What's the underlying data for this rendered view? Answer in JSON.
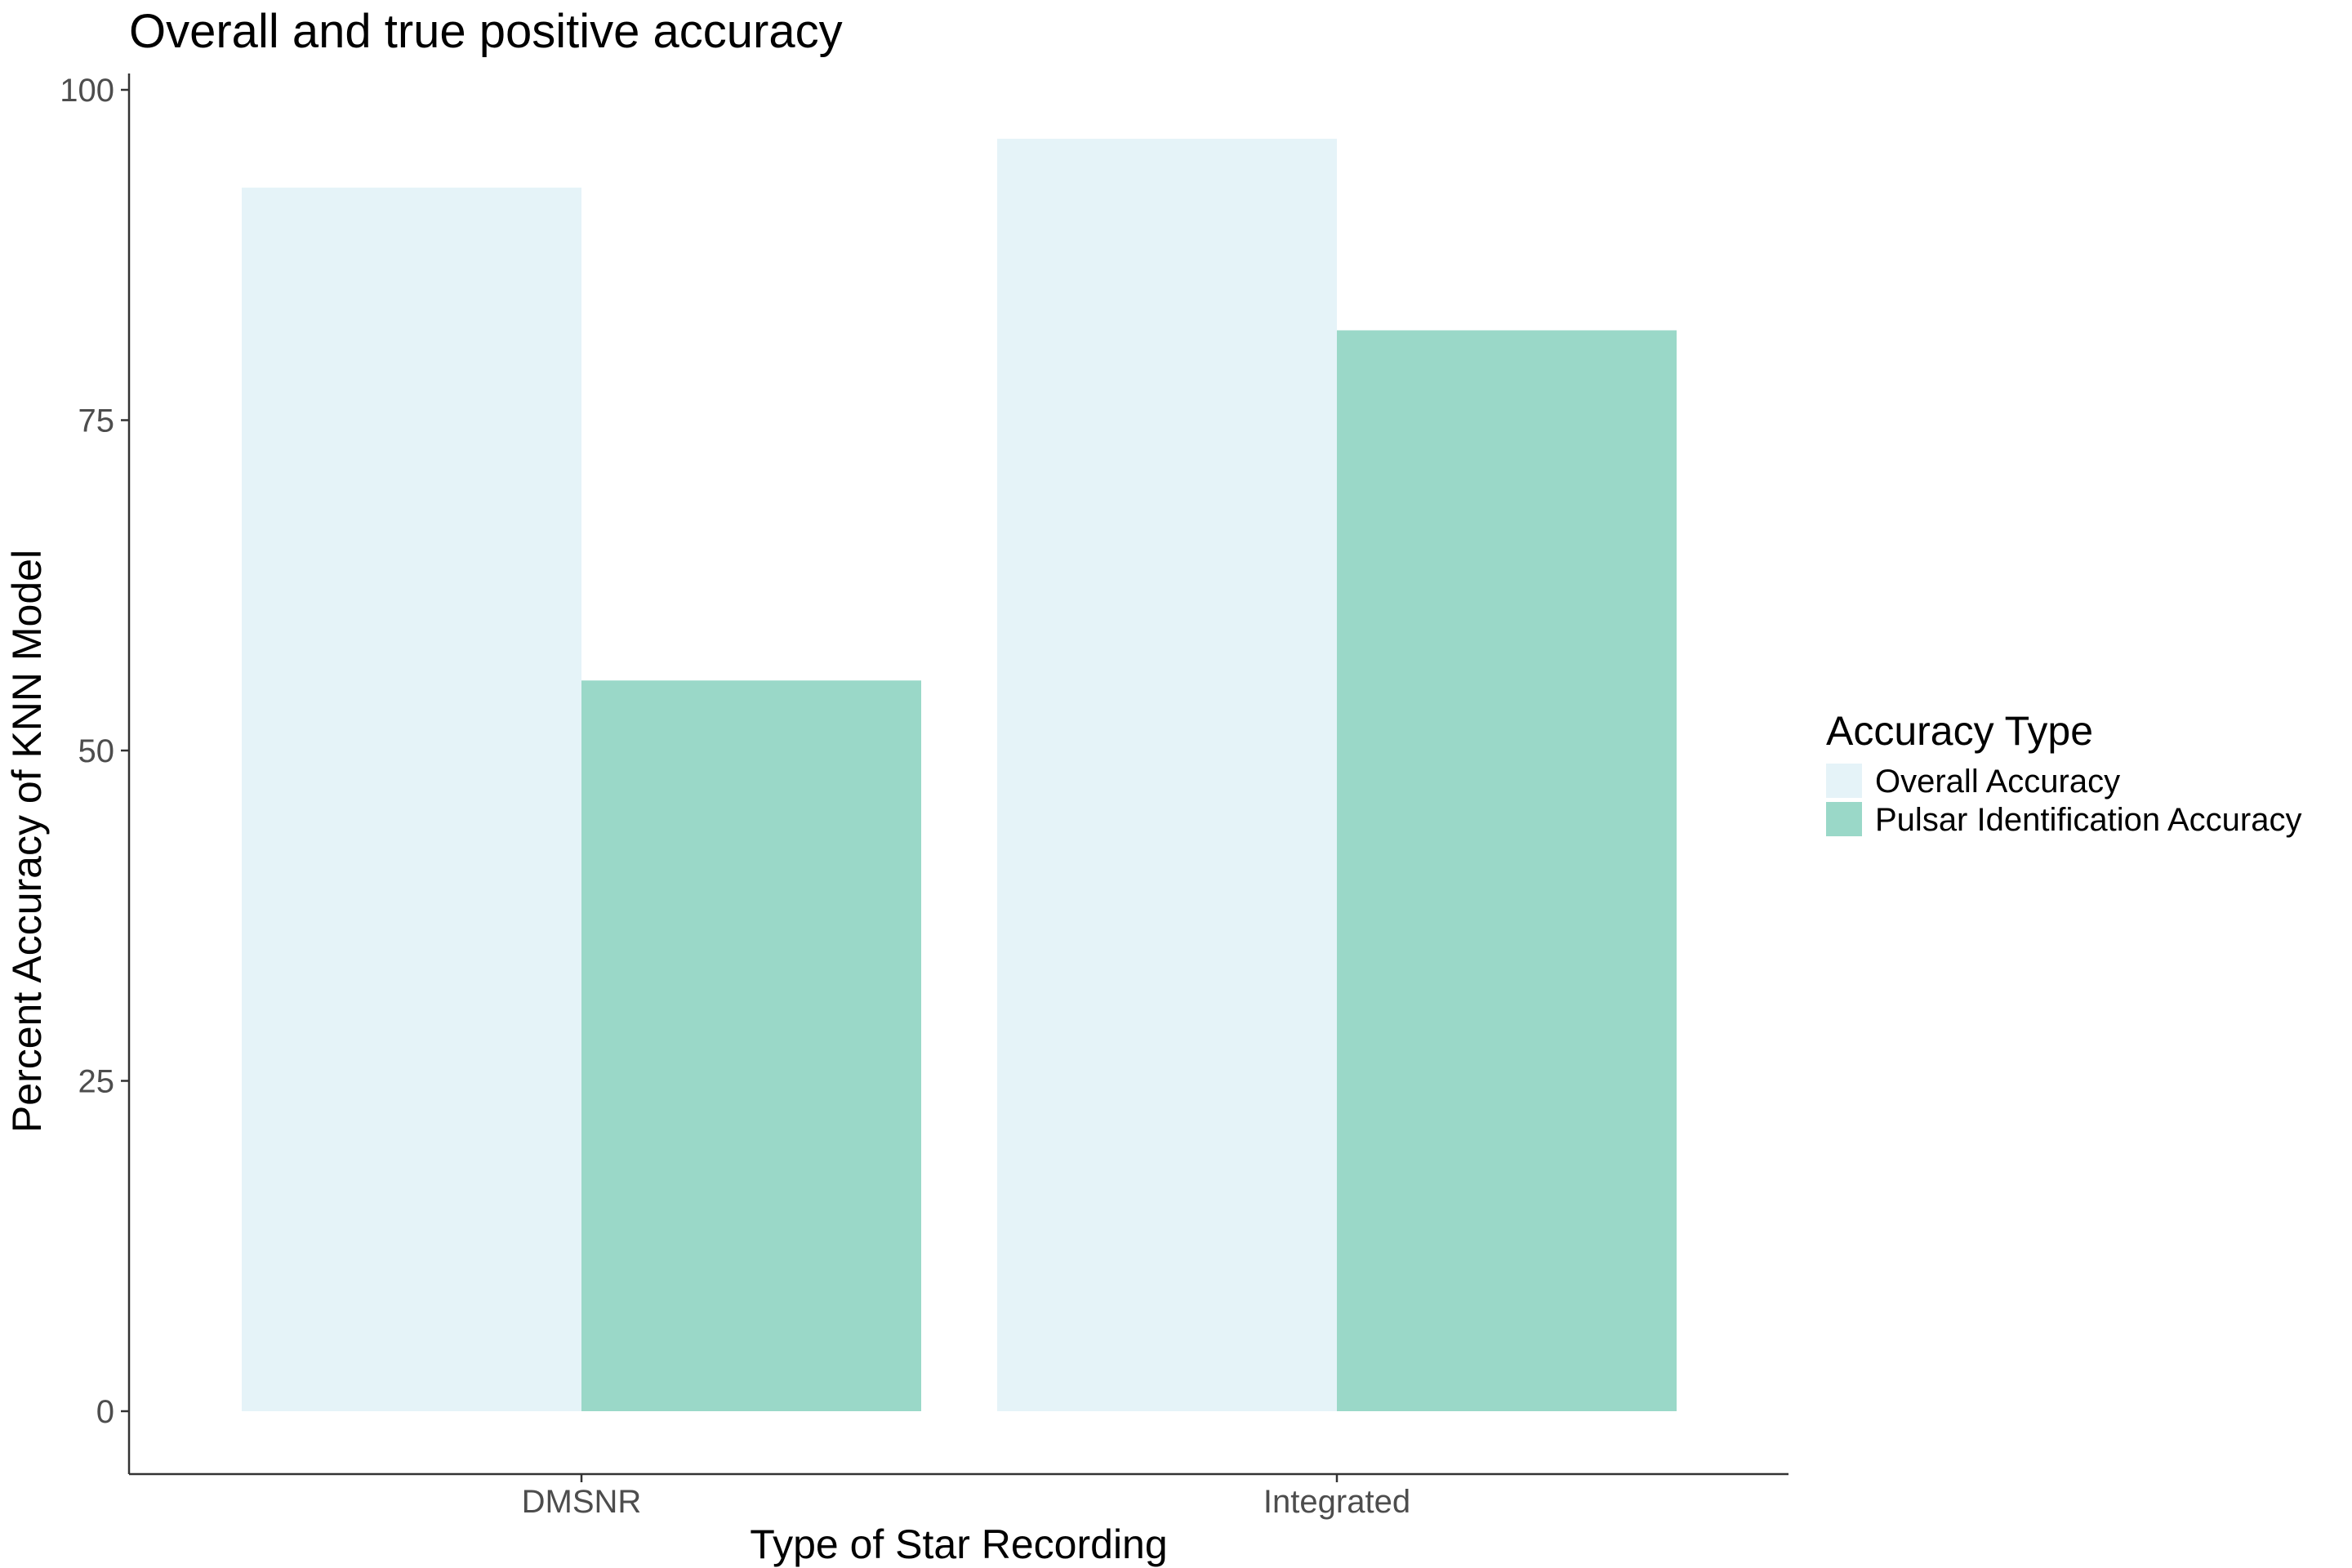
{
  "chart_data": {
    "type": "bar",
    "title": "Overall and true positive accuracy",
    "xlabel": "Type of Star Recording",
    "ylabel": "Percent Accuracy of KNN Model",
    "categories": [
      "DMSNR",
      "Integrated"
    ],
    "series": [
      {
        "name": "Overall Accuracy",
        "values": [
          92.6,
          96.3
        ],
        "color": "#e5f3f8"
      },
      {
        "name": "Pulsar Identification Accuracy",
        "values": [
          55.3,
          81.8
        ],
        "color": "#9ad8c8"
      }
    ],
    "ylim": [
      0,
      100
    ],
    "yticks": [
      0,
      25,
      50,
      75,
      100
    ],
    "grid": false,
    "legend": {
      "title": "Accuracy Type",
      "position": "right"
    }
  }
}
